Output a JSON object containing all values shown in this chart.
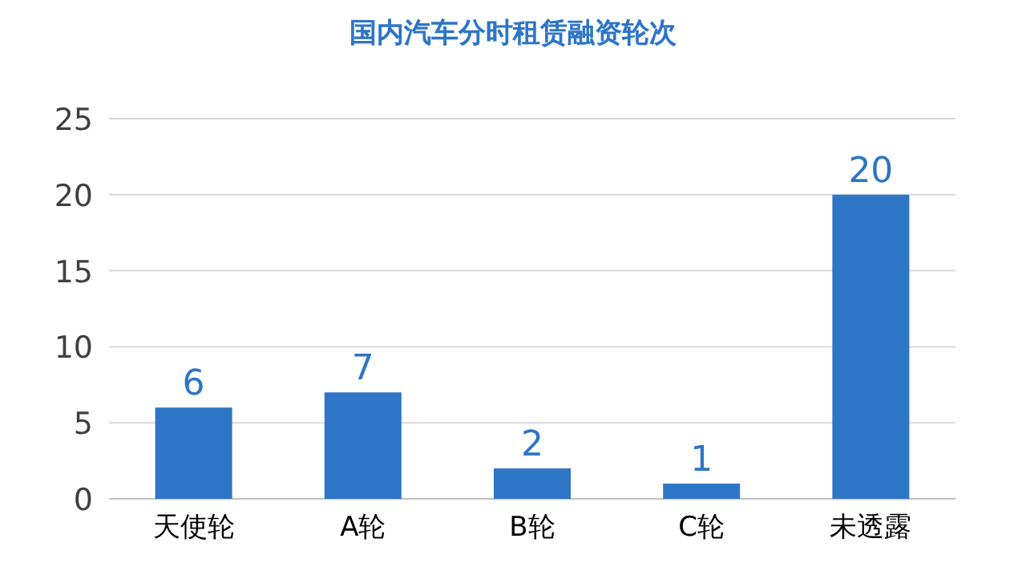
{
  "chart_data": {
    "type": "bar",
    "title": "国内汽车分时租赁融资轮次",
    "categories": [
      "天使轮",
      "A轮",
      "B轮",
      "C轮",
      "未透露"
    ],
    "values": [
      6,
      7,
      2,
      1,
      20
    ],
    "color": "#2e75c6",
    "ylim": [
      0,
      25
    ],
    "yticks": [
      0,
      5,
      10,
      15,
      20,
      25
    ],
    "grid": "y",
    "data_labels": true
  }
}
